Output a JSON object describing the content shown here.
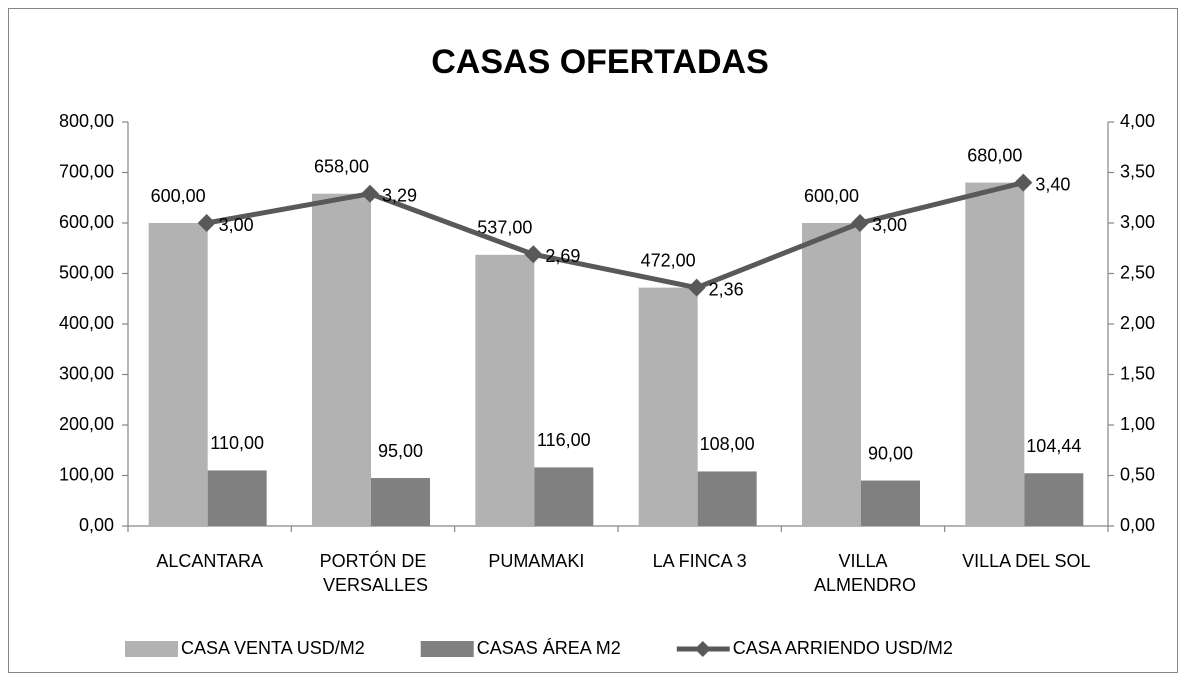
{
  "chart_data": {
    "type": "bar_line",
    "title": "CASAS OFERTADAS",
    "categories": [
      "ALCANTARA",
      "PORTÓN DE VERSALLES",
      "PUMAMAKI",
      "LA FINCA 3",
      "VILLA ALMENDRO",
      "VILLA DEL SOL"
    ],
    "series": [
      {
        "name": "CASA VENTA USD/M2",
        "type": "bar",
        "color": "#b2b2b2",
        "values": [
          600,
          658,
          537,
          472,
          600,
          680
        ],
        "value_labels": [
          "600,00",
          "658,00",
          "537,00",
          "472,00",
          "600,00",
          "680,00"
        ]
      },
      {
        "name": "CASAS ÁREA M2",
        "type": "bar",
        "color": "#808080",
        "values": [
          110,
          95,
          116,
          108,
          90,
          104.44
        ],
        "value_labels": [
          "110,00",
          "95,00",
          "116,00",
          "108,00",
          "90,00",
          "104,44"
        ]
      },
      {
        "name": "CASA ARRIENDO USD/M2",
        "type": "line",
        "axis": "y2",
        "color": "#595959",
        "values": [
          3,
          3.29,
          2.69,
          2.36,
          3,
          3.4
        ],
        "value_labels": [
          "3,00",
          "3,29",
          "2,69",
          "2,36",
          "3,00",
          "3,40"
        ]
      }
    ],
    "ylim": [
      0,
      800
    ],
    "yticks": [
      {
        "value": 0,
        "label": "0,00"
      },
      {
        "value": 100,
        "label": "100,00"
      },
      {
        "value": 200,
        "label": "200,00"
      },
      {
        "value": 300,
        "label": "300,00"
      },
      {
        "value": 400,
        "label": "400,00"
      },
      {
        "value": 500,
        "label": "500,00"
      },
      {
        "value": 600,
        "label": "600,00"
      },
      {
        "value": 700,
        "label": "700,00"
      },
      {
        "value": 800,
        "label": "800,00"
      }
    ],
    "y2lim": [
      0,
      4
    ],
    "y2ticks": [
      {
        "value": 0,
        "label": "0,00"
      },
      {
        "value": 0.5,
        "label": "0,50"
      },
      {
        "value": 1,
        "label": "1,00"
      },
      {
        "value": 1.5,
        "label": "1,50"
      },
      {
        "value": 2,
        "label": "2,00"
      },
      {
        "value": 2.5,
        "label": "2,50"
      },
      {
        "value": 3,
        "label": "3,00"
      },
      {
        "value": 3.5,
        "label": "3,50"
      },
      {
        "value": 4,
        "label": "4,00"
      }
    ],
    "grid": false,
    "legend": "bottom"
  }
}
